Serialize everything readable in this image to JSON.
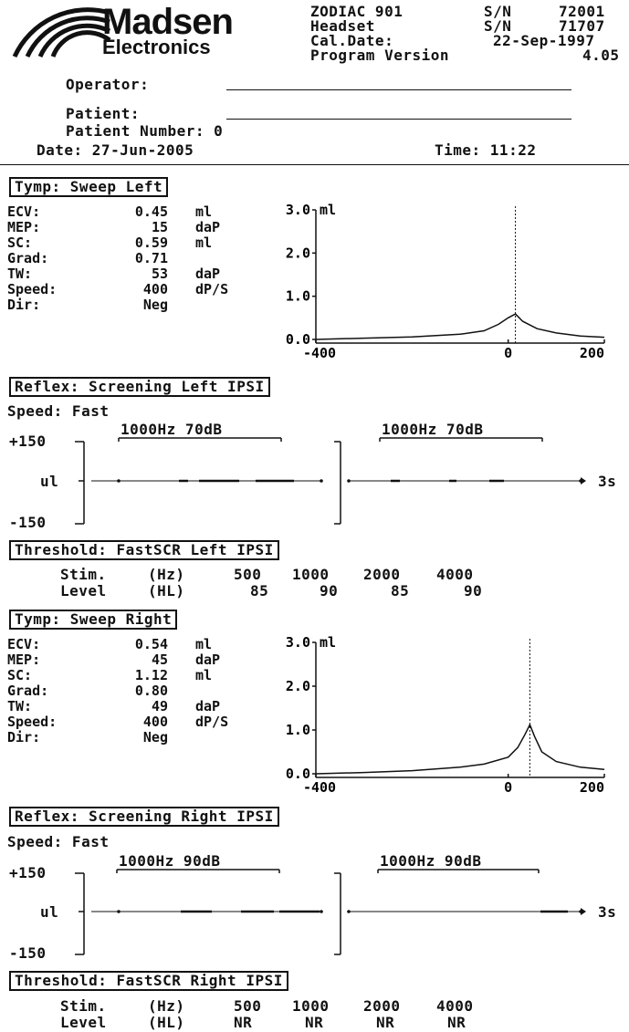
{
  "header": {
    "logo_top": "Madsen",
    "logo_bottom": "Electronics",
    "device_rows": [
      [
        "ZODIAC 901",
        "S/N",
        "72001"
      ],
      [
        "Headset",
        "S/N",
        "71707"
      ],
      [
        "Cal.Date:",
        "22-Sep-1997"
      ],
      [
        "Program Version",
        "4.05"
      ]
    ],
    "operator_label": "Operator:",
    "patient_label": "Patient:",
    "patient_number": "Patient Number: 0",
    "date": "Date: 27-Jun-2005",
    "time": "Time: 11:22"
  },
  "tymp_left": {
    "title": "Tymp: Sweep Left",
    "rows": [
      {
        "label": "ECV:",
        "value": "0.45",
        "unit": "ml"
      },
      {
        "label": "MEP:",
        "value": "15",
        "unit": "daP"
      },
      {
        "label": "SC:",
        "value": "0.59",
        "unit": "ml"
      },
      {
        "label": "Grad:",
        "value": "0.71",
        "unit": ""
      },
      {
        "label": "TW:",
        "value": "53",
        "unit": "daP"
      },
      {
        "label": "Speed:",
        "value": "400",
        "unit": "dP/S"
      },
      {
        "label": "Dir:",
        "value": "Neg",
        "unit": ""
      }
    ]
  },
  "reflex_left": {
    "title": "Reflex: Screening Left IPSI",
    "speed": "Speed: Fast",
    "stim1": "1000Hz 70dB",
    "stim2": "1000Hz 70dB",
    "top": "+150",
    "mid": "ul",
    "bottom": "-150",
    "time_label": "3s"
  },
  "threshold_left": {
    "title": "Threshold: FastSCR Left IPSI",
    "stim_label": "Stim.",
    "stim_unit": "(Hz)",
    "level_label": "Level",
    "level_unit": "(HL)",
    "freqs": [
      "500",
      "1000",
      "2000",
      "4000"
    ],
    "levels": [
      "85",
      "90",
      "85",
      "90"
    ]
  },
  "tymp_right": {
    "title": "Tymp: Sweep Right",
    "rows": [
      {
        "label": "ECV:",
        "value": "0.54",
        "unit": "ml"
      },
      {
        "label": "MEP:",
        "value": "45",
        "unit": "daP"
      },
      {
        "label": "SC:",
        "value": "1.12",
        "unit": "ml"
      },
      {
        "label": "Grad:",
        "value": "0.80",
        "unit": ""
      },
      {
        "label": "TW:",
        "value": "49",
        "unit": "daP"
      },
      {
        "label": "Speed:",
        "value": "400",
        "unit": "dP/S"
      },
      {
        "label": "Dir:",
        "value": "Neg",
        "unit": ""
      }
    ]
  },
  "reflex_right": {
    "title": "Reflex: Screening Right IPSI",
    "speed": "Speed: Fast",
    "stim1": "1000Hz 90dB",
    "stim2": "1000Hz 90dB",
    "top": "+150",
    "mid": "ul",
    "bottom": "-150",
    "time_label": "3s"
  },
  "threshold_right": {
    "title": "Threshold: FastSCR Right IPSI",
    "stim_label": "Stim.",
    "stim_unit": "(Hz)",
    "level_label": "Level",
    "level_unit": "(HL)",
    "freqs": [
      "500",
      "1000",
      "2000",
      "4000"
    ],
    "levels": [
      "NR",
      "NR",
      "NR",
      "NR"
    ]
  },
  "chart_data": [
    {
      "type": "line",
      "name": "Tymp Left",
      "x": [
        -400,
        -300,
        -200,
        -100,
        -50,
        -20,
        0,
        15,
        30,
        60,
        100,
        150,
        200
      ],
      "y": [
        0.0,
        0.03,
        0.06,
        0.12,
        0.2,
        0.35,
        0.5,
        0.59,
        0.42,
        0.25,
        0.15,
        0.08,
        0.05
      ],
      "peak_x": 15,
      "xlim": [
        -400,
        200
      ],
      "ylim": [
        0,
        3.0
      ],
      "x_ticks": [
        "-400",
        "0",
        "200"
      ],
      "y_ticks": [
        "0.0",
        "1.0",
        "2.0",
        "3.0"
      ],
      "y_unit": "ml"
    },
    {
      "type": "line",
      "name": "Tymp Right",
      "x": [
        -400,
        -300,
        -200,
        -100,
        -50,
        0,
        20,
        35,
        45,
        55,
        70,
        100,
        150,
        200
      ],
      "y": [
        0.0,
        0.03,
        0.07,
        0.15,
        0.22,
        0.38,
        0.6,
        0.9,
        1.12,
        0.85,
        0.5,
        0.28,
        0.15,
        0.1
      ],
      "peak_x": 45,
      "xlim": [
        -400,
        200
      ],
      "ylim": [
        0,
        3.0
      ],
      "x_ticks": [
        "-400",
        "0",
        "200"
      ],
      "y_ticks": [
        "0.0",
        "1.0",
        "2.0",
        "3.0"
      ],
      "y_unit": "ml"
    }
  ]
}
